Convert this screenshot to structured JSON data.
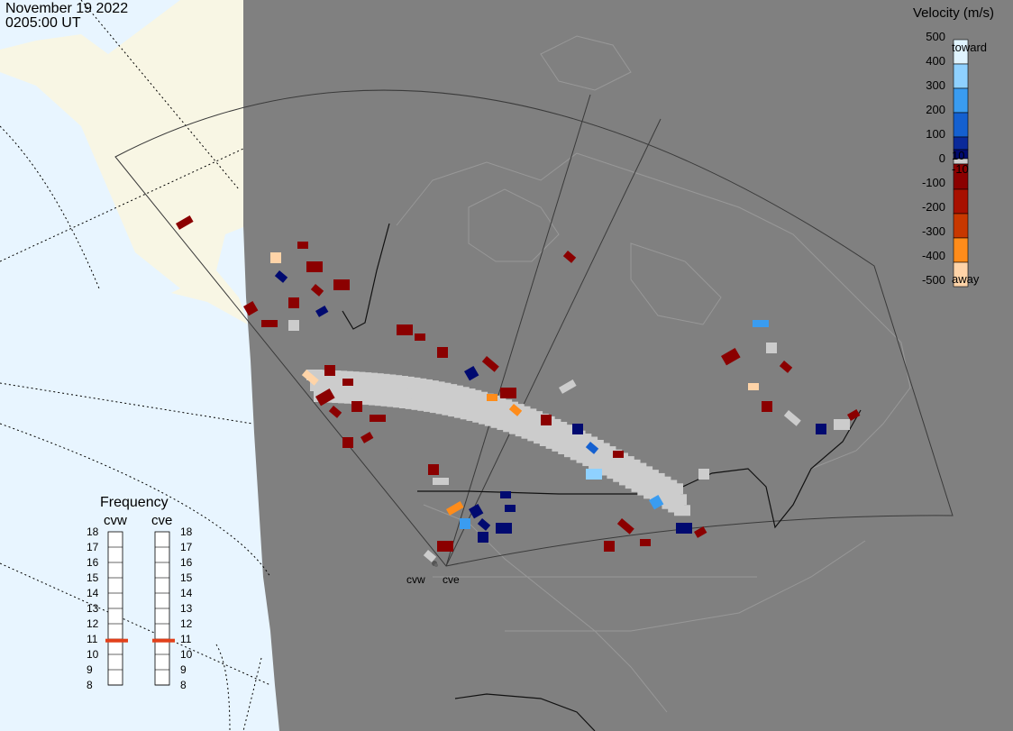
{
  "header": {
    "date": "November 19 2022",
    "time": "0205:00 UT"
  },
  "velocity_scale": {
    "title": "Velocity (m/s)",
    "ticks": [
      "500",
      "400",
      "300",
      "200",
      "100",
      "0",
      "-100",
      "-200",
      "-300",
      "-400",
      "-500"
    ],
    "inner_labels": [
      "10",
      "-10"
    ],
    "toward_label": "toward",
    "away_label": "away",
    "colors": {
      "toward": [
        "#e0f4ff",
        "#8fd1ff",
        "#3a9cf0",
        "#1460d0",
        "#0a2a9a",
        "#000a70"
      ],
      "near_zero": "#cccccc",
      "away": [
        "#8b0000",
        "#a81000",
        "#c83800",
        "#e05800",
        "#ff8c1a",
        "#ffd4a8"
      ]
    }
  },
  "frequency_panel": {
    "title": "Frequency",
    "radars": [
      {
        "code": "cvw",
        "frequency_mhz": 10.9
      },
      {
        "code": "cve",
        "frequency_mhz": 10.9
      }
    ],
    "scale": [
      "18",
      "17",
      "16",
      "15",
      "14",
      "13",
      "12",
      "11",
      "10",
      "9",
      "8"
    ],
    "marker_color": "#e2401a"
  },
  "map": {
    "ocean_color": "#e8f5ff",
    "land_color": "#f8f6e4",
    "night_shade_color": "#808080",
    "radar_sites": [
      {
        "code": "cvw",
        "label": "cvw"
      },
      {
        "code": "cve",
        "label": "cve"
      }
    ]
  }
}
